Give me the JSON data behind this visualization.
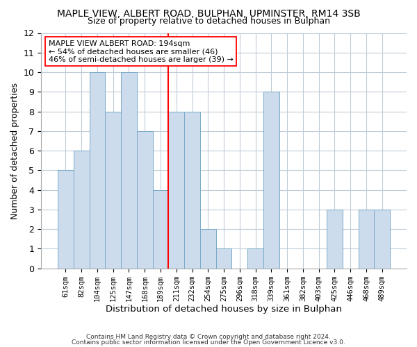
{
  "title": "MAPLE VIEW, ALBERT ROAD, BULPHAN, UPMINSTER, RM14 3SB",
  "subtitle": "Size of property relative to detached houses in Bulphan",
  "xlabel": "Distribution of detached houses by size in Bulphan",
  "ylabel": "Number of detached properties",
  "bar_labels": [
    "61sqm",
    "82sqm",
    "104sqm",
    "125sqm",
    "147sqm",
    "168sqm",
    "189sqm",
    "211sqm",
    "232sqm",
    "254sqm",
    "275sqm",
    "296sqm",
    "318sqm",
    "339sqm",
    "361sqm",
    "382sqm",
    "403sqm",
    "425sqm",
    "446sqm",
    "468sqm",
    "489sqm"
  ],
  "bar_values": [
    5,
    6,
    10,
    8,
    10,
    7,
    4,
    8,
    8,
    2,
    1,
    0,
    1,
    9,
    0,
    0,
    0,
    3,
    0,
    3,
    3
  ],
  "bar_color": "#ccdcec",
  "bar_edge_color": "#7aaac8",
  "marker_index": 6,
  "marker_color": "red",
  "annotation_title": "MAPLE VIEW ALBERT ROAD: 194sqm",
  "annotation_line1": "← 54% of detached houses are smaller (46)",
  "annotation_line2": "46% of semi-detached houses are larger (39) →",
  "ylim": [
    0,
    12
  ],
  "yticks": [
    0,
    1,
    2,
    3,
    4,
    5,
    6,
    7,
    8,
    9,
    10,
    11,
    12
  ],
  "footer1": "Contains HM Land Registry data © Crown copyright and database right 2024.",
  "footer2": "Contains public sector information licensed under the Open Government Licence v3.0.",
  "bg_color": "#ffffff",
  "grid_color": "#c0ccd8"
}
